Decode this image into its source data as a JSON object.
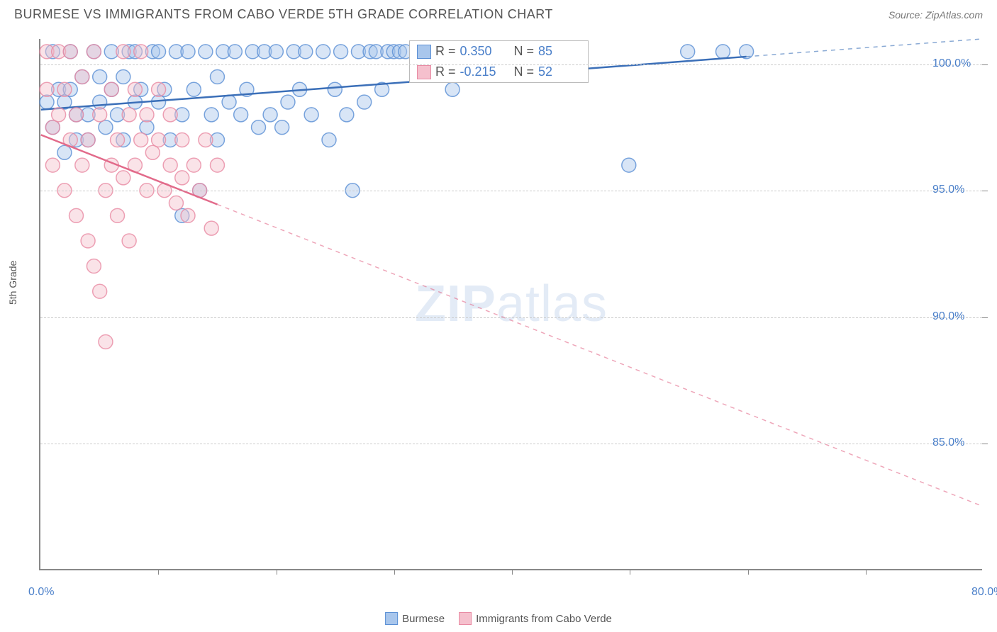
{
  "title": "BURMESE VS IMMIGRANTS FROM CABO VERDE 5TH GRADE CORRELATION CHART",
  "source_label": "Source: ZipAtlas.com",
  "ylabel": "5th Grade",
  "watermark_bold": "ZIP",
  "watermark_light": "atlas",
  "chart": {
    "type": "scatter",
    "xlim": [
      0,
      80
    ],
    "ylim": [
      80,
      101
    ],
    "xtick_labels": [
      {
        "val": 0,
        "label": "0.0%"
      },
      {
        "val": 80,
        "label": "80.0%"
      }
    ],
    "xticks_minor": [
      10,
      20,
      30,
      40,
      50,
      60,
      70
    ],
    "ytick_labels": [
      {
        "val": 85,
        "label": "85.0%"
      },
      {
        "val": 90,
        "label": "90.0%"
      },
      {
        "val": 95,
        "label": "95.0%"
      },
      {
        "val": 100,
        "label": "100.0%"
      }
    ],
    "grid_color": "#cccccc",
    "axis_color": "#888888",
    "background_color": "#ffffff",
    "marker_radius": 10,
    "marker_opacity": 0.45,
    "marker_stroke_width": 1.5,
    "trend_line_width": 2.5,
    "series": [
      {
        "name": "Burmese",
        "color_fill": "#a8c6ec",
        "color_stroke": "#5a8fd4",
        "trend_color": "#3b6fb8",
        "trend_solid_end_x": 60,
        "trend": {
          "x1": 0,
          "y1": 98.2,
          "x2": 80,
          "y2": 101.0
        },
        "stats": {
          "R": "0.350",
          "N": "85"
        },
        "points": [
          [
            0.5,
            98.5
          ],
          [
            1,
            97.5
          ],
          [
            1,
            100.5
          ],
          [
            1.5,
            99
          ],
          [
            2,
            98.5
          ],
          [
            2,
            96.5
          ],
          [
            2.5,
            99
          ],
          [
            2.5,
            100.5
          ],
          [
            3,
            97
          ],
          [
            3,
            98
          ],
          [
            3.5,
            99.5
          ],
          [
            4,
            98
          ],
          [
            4,
            97
          ],
          [
            4.5,
            100.5
          ],
          [
            5,
            98.5
          ],
          [
            5,
            99.5
          ],
          [
            5.5,
            97.5
          ],
          [
            6,
            99
          ],
          [
            6,
            100.5
          ],
          [
            6.5,
            98
          ],
          [
            7,
            99.5
          ],
          [
            7,
            97
          ],
          [
            7.5,
            100.5
          ],
          [
            8,
            98.5
          ],
          [
            8,
            100.5
          ],
          [
            8.5,
            99
          ],
          [
            9,
            97.5
          ],
          [
            9.5,
            100.5
          ],
          [
            10,
            98.5
          ],
          [
            10,
            100.5
          ],
          [
            10.5,
            99
          ],
          [
            11,
            97
          ],
          [
            11.5,
            100.5
          ],
          [
            12,
            98
          ],
          [
            12,
            94
          ],
          [
            12.5,
            100.5
          ],
          [
            13,
            99
          ],
          [
            13.5,
            95
          ],
          [
            14,
            100.5
          ],
          [
            14.5,
            98
          ],
          [
            15,
            99.5
          ],
          [
            15,
            97
          ],
          [
            15.5,
            100.5
          ],
          [
            16,
            98.5
          ],
          [
            16.5,
            100.5
          ],
          [
            17,
            98
          ],
          [
            17.5,
            99
          ],
          [
            18,
            100.5
          ],
          [
            18.5,
            97.5
          ],
          [
            19,
            100.5
          ],
          [
            19.5,
            98
          ],
          [
            20,
            100.5
          ],
          [
            20.5,
            97.5
          ],
          [
            21,
            98.5
          ],
          [
            21.5,
            100.5
          ],
          [
            22,
            99
          ],
          [
            22.5,
            100.5
          ],
          [
            23,
            98
          ],
          [
            24,
            100.5
          ],
          [
            24.5,
            97
          ],
          [
            25,
            99
          ],
          [
            25.5,
            100.5
          ],
          [
            26,
            98
          ],
          [
            26.5,
            95
          ],
          [
            27,
            100.5
          ],
          [
            27.5,
            98.5
          ],
          [
            28,
            100.5
          ],
          [
            28.5,
            100.5
          ],
          [
            29,
            99
          ],
          [
            29.5,
            100.5
          ],
          [
            30,
            100.5
          ],
          [
            30.5,
            100.5
          ],
          [
            31,
            100.5
          ],
          [
            32,
            100.5
          ],
          [
            33,
            100.5
          ],
          [
            34,
            100.5
          ],
          [
            35,
            99
          ],
          [
            36,
            100.5
          ],
          [
            50,
            96
          ],
          [
            55,
            100.5
          ],
          [
            60,
            100.5
          ],
          [
            58,
            100.5
          ]
        ]
      },
      {
        "name": "Immigrants from Cabo Verde",
        "color_fill": "#f5c0cd",
        "color_stroke": "#e88aa3",
        "trend_color": "#e26a8a",
        "trend_solid_end_x": 15,
        "trend": {
          "x1": 0,
          "y1": 97.2,
          "x2": 80,
          "y2": 82.5
        },
        "stats": {
          "R": "-0.215",
          "N": "52"
        },
        "points": [
          [
            0.5,
            99
          ],
          [
            0.5,
            100.5
          ],
          [
            1,
            97.5
          ],
          [
            1,
            96
          ],
          [
            1.5,
            100.5
          ],
          [
            1.5,
            98
          ],
          [
            2,
            99
          ],
          [
            2,
            95
          ],
          [
            2.5,
            97
          ],
          [
            2.5,
            100.5
          ],
          [
            3,
            98
          ],
          [
            3,
            94
          ],
          [
            3.5,
            99.5
          ],
          [
            3.5,
            96
          ],
          [
            4,
            97
          ],
          [
            4,
            93
          ],
          [
            4.5,
            92
          ],
          [
            4.5,
            100.5
          ],
          [
            5,
            98
          ],
          [
            5,
            91
          ],
          [
            5.5,
            95
          ],
          [
            5.5,
            89
          ],
          [
            6,
            99
          ],
          [
            6,
            96
          ],
          [
            6.5,
            97
          ],
          [
            6.5,
            94
          ],
          [
            7,
            100.5
          ],
          [
            7,
            95.5
          ],
          [
            7.5,
            98
          ],
          [
            7.5,
            93
          ],
          [
            8,
            96
          ],
          [
            8,
            99
          ],
          [
            8.5,
            97
          ],
          [
            8.5,
            100.5
          ],
          [
            9,
            95
          ],
          [
            9,
            98
          ],
          [
            9.5,
            96.5
          ],
          [
            10,
            99
          ],
          [
            10,
            97
          ],
          [
            10.5,
            95
          ],
          [
            11,
            98
          ],
          [
            11,
            96
          ],
          [
            11.5,
            94.5
          ],
          [
            12,
            97
          ],
          [
            12,
            95.5
          ],
          [
            12.5,
            94
          ],
          [
            13,
            96
          ],
          [
            13.5,
            95
          ],
          [
            14,
            97
          ],
          [
            14.5,
            93.5
          ],
          [
            15,
            96
          ]
        ]
      }
    ]
  },
  "legend": {
    "items": [
      {
        "label": "Burmese",
        "fill": "#a8c6ec",
        "stroke": "#5a8fd4"
      },
      {
        "label": "Immigrants from Cabo Verde",
        "fill": "#f5c0cd",
        "stroke": "#e88aa3"
      }
    ]
  },
  "stats_box": {
    "r_label": "R =",
    "n_label": "N ="
  }
}
